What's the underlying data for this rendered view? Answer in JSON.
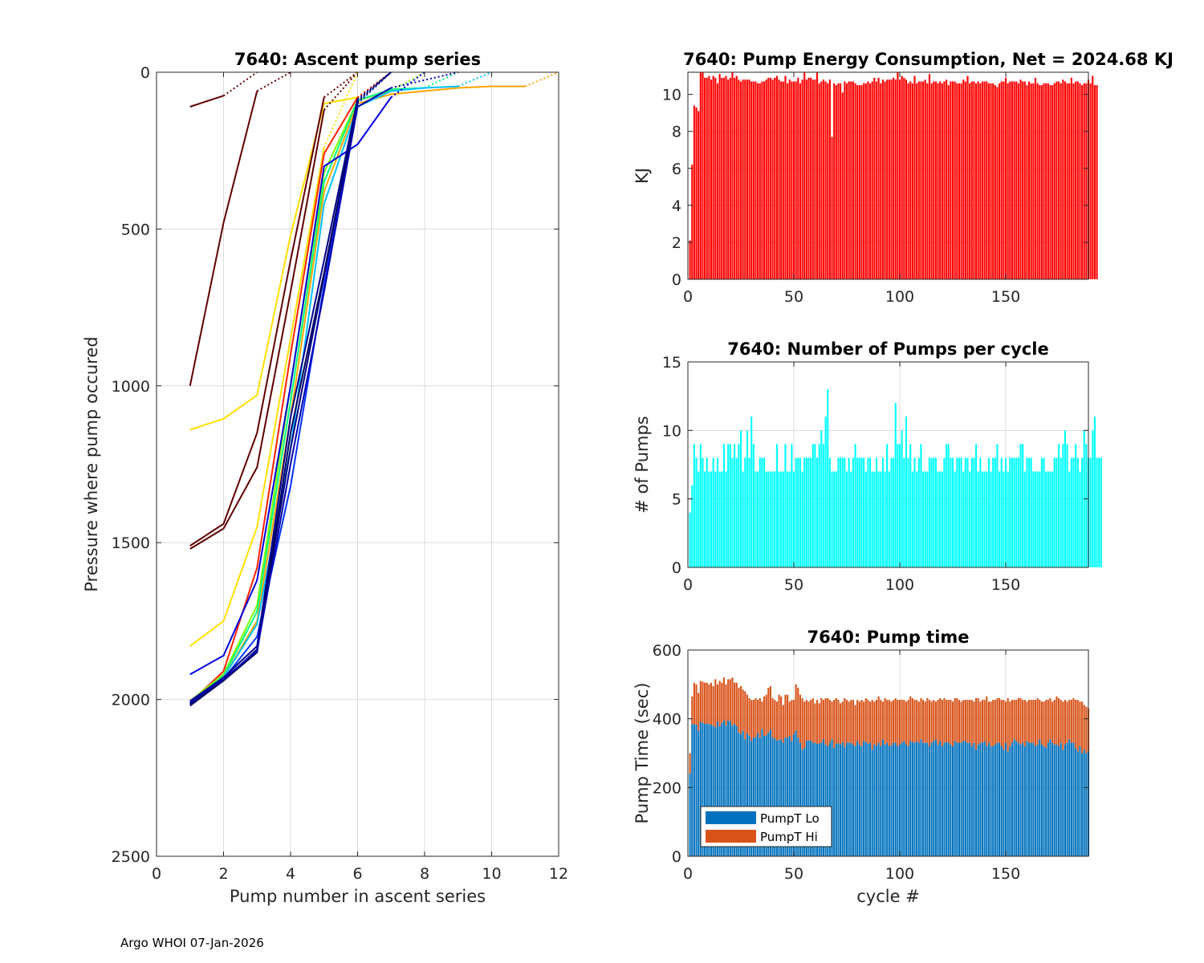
{
  "footer": "Argo WHOI 07-Jan-2026",
  "chart_data": [
    {
      "id": "ascent",
      "type": "line",
      "title": "7640: Ascent pump series",
      "xlabel": "Pump number in ascent series",
      "ylabel": "Pressure where pump occured",
      "xlim": [
        0,
        12
      ],
      "ylim": [
        0,
        2500
      ],
      "y_reversed": true,
      "grid": true,
      "xticks": [
        0,
        2,
        4,
        6,
        8,
        10,
        12
      ],
      "yticks": [
        0,
        500,
        1000,
        1500,
        2000,
        2500
      ],
      "note": "final segment of each series (to surface) drawn dotted",
      "series": [
        {
          "color": "#600000",
          "x": [
            1,
            2,
            3
          ],
          "y": [
            110,
            75,
            0
          ]
        },
        {
          "color": "#600000",
          "x": [
            1,
            2,
            3,
            4
          ],
          "y": [
            1000,
            480,
            60,
            0
          ]
        },
        {
          "color": "#FFE000",
          "x": [
            1,
            2,
            3,
            4,
            5,
            6,
            7
          ],
          "y": [
            1140,
            1105,
            1030,
            520,
            100,
            80,
            0
          ]
        },
        {
          "color": "#600000",
          "x": [
            1,
            2,
            3,
            4,
            5,
            6
          ],
          "y": [
            1510,
            1440,
            1150,
            600,
            80,
            0
          ]
        },
        {
          "color": "#600000",
          "x": [
            1,
            2,
            3,
            4,
            5,
            6
          ],
          "y": [
            1520,
            1455,
            1260,
            700,
            120,
            0
          ]
        },
        {
          "color": "#FFE000",
          "x": [
            1,
            2,
            3,
            4,
            5,
            6
          ],
          "y": [
            1830,
            1750,
            1450,
            850,
            240,
            0
          ]
        },
        {
          "color": "#FF2000",
          "x": [
            1,
            2,
            3,
            4,
            5,
            6,
            7
          ],
          "y": [
            2010,
            1910,
            1580,
            900,
            260,
            80,
            0
          ]
        },
        {
          "color": "#80FF00",
          "x": [
            1,
            2,
            3,
            4,
            5,
            6,
            7,
            8
          ],
          "y": [
            2005,
            1920,
            1700,
            1000,
            320,
            90,
            60,
            0
          ]
        },
        {
          "color": "#00FF80",
          "x": [
            1,
            2,
            3,
            4,
            5,
            6,
            7,
            8,
            9
          ],
          "y": [
            2010,
            1925,
            1720,
            1050,
            350,
            90,
            55,
            50,
            0
          ]
        },
        {
          "color": "#FFA500",
          "x": [
            1,
            2,
            3,
            4,
            5,
            6,
            7,
            8,
            9,
            10,
            11,
            12
          ],
          "y": [
            2010,
            1930,
            1750,
            1100,
            380,
            100,
            70,
            60,
            50,
            45,
            45,
            0
          ]
        },
        {
          "color": "#00C0FF",
          "x": [
            1,
            2,
            3,
            4,
            5,
            6,
            7,
            8,
            9,
            10
          ],
          "y": [
            2015,
            1930,
            1760,
            1200,
            420,
            110,
            60,
            50,
            45,
            0
          ]
        },
        {
          "color": "#0000E0",
          "x": [
            1,
            2,
            3,
            4,
            5,
            6,
            7,
            8
          ],
          "y": [
            1920,
            1860,
            1620,
            1000,
            300,
            230,
            80,
            0
          ]
        },
        {
          "color": "#0030FF",
          "x": [
            1,
            2,
            3,
            4,
            5,
            6,
            7
          ],
          "y": [
            2010,
            1935,
            1800,
            1320,
            680,
            100,
            0
          ]
        },
        {
          "color": "#000080",
          "x": [
            1,
            2,
            3,
            4,
            5,
            6,
            7
          ],
          "y": [
            2015,
            1940,
            1840,
            1200,
            650,
            90,
            0
          ]
        },
        {
          "color": "#000060",
          "x": [
            1,
            2,
            3,
            4,
            5,
            6,
            7
          ],
          "y": [
            2020,
            1940,
            1850,
            1150,
            640,
            95,
            0
          ]
        },
        {
          "color": "#00008A",
          "x": [
            1,
            2,
            3,
            4,
            5,
            6,
            7
          ],
          "y": [
            2005,
            1930,
            1830,
            1100,
            600,
            85,
            0
          ]
        },
        {
          "color": "#0000B0",
          "x": [
            1,
            2,
            3,
            4,
            5,
            6,
            7,
            9
          ],
          "y": [
            2010,
            1935,
            1845,
            1250,
            700,
            110,
            50,
            0
          ]
        }
      ]
    },
    {
      "id": "energy",
      "type": "bar",
      "title": "7640: Pump Energy Consumption,  Net = 2024.68 KJ",
      "xlabel": "",
      "ylabel": "KJ",
      "xlim": [
        0,
        189
      ],
      "ylim": [
        0,
        11.2
      ],
      "grid": true,
      "xticks": [
        0,
        50,
        100,
        150
      ],
      "yticks": [
        0,
        2,
        4,
        6,
        8,
        10
      ],
      "color": "#FF0000",
      "values": [
        2.1,
        6.2,
        9.4,
        9.3,
        9.1,
        11.2,
        11.2,
        10.9,
        10.9,
        11.0,
        10.8,
        11.0,
        10.9,
        10.6,
        11.1,
        10.9,
        10.9,
        11.0,
        10.8,
        10.9,
        11.2,
        10.9,
        11.0,
        10.8,
        10.7,
        10.8,
        10.8,
        10.8,
        10.8,
        10.7,
        10.7,
        10.7,
        10.6,
        10.6,
        10.7,
        10.7,
        10.8,
        10.9,
        10.9,
        10.8,
        10.9,
        11.0,
        10.8,
        10.7,
        10.7,
        11.0,
        10.6,
        10.8,
        10.7,
        10.7,
        10.7,
        10.9,
        10.6,
        10.8,
        11.2,
        10.8,
        10.9,
        10.9,
        10.8,
        10.8,
        11.2,
        10.6,
        10.7,
        10.8,
        10.7,
        10.6,
        10.8,
        7.7,
        10.6,
        10.5,
        10.6,
        10.6,
        10.1,
        10.7,
        10.6,
        10.7,
        10.7,
        10.7,
        10.6,
        10.5,
        10.5,
        10.5,
        10.6,
        10.6,
        10.7,
        10.6,
        10.7,
        10.9,
        10.7,
        10.9,
        10.6,
        10.8,
        10.7,
        10.8,
        10.8,
        10.8,
        10.9,
        10.8,
        11.2,
        10.8,
        11.0,
        10.9,
        10.8,
        10.6,
        10.7,
        10.6,
        11.0,
        10.6,
        10.7,
        10.7,
        10.7,
        10.8,
        10.6,
        11.1,
        10.6,
        10.7,
        10.7,
        10.6,
        10.7,
        10.6,
        10.7,
        10.8,
        10.5,
        10.7,
        10.7,
        10.7,
        10.6,
        10.6,
        10.6,
        10.8,
        10.7,
        11.0,
        10.6,
        10.7,
        10.7,
        10.6,
        10.7,
        10.6,
        10.7,
        10.7,
        10.7,
        10.6,
        10.6,
        10.6,
        10.5,
        10.4,
        10.6,
        10.7,
        10.7,
        10.9,
        10.6,
        10.7,
        10.7,
        10.7,
        10.7,
        10.6,
        10.8,
        10.7,
        10.7,
        10.5,
        10.7,
        10.6,
        10.6,
        10.9,
        10.6,
        10.5,
        10.5,
        10.6,
        10.6,
        10.6,
        10.5,
        10.5,
        10.6,
        10.7,
        10.7,
        10.6,
        10.8,
        10.7,
        10.6,
        10.6,
        10.9,
        10.6,
        10.7,
        10.7,
        10.6,
        10.5,
        10.6,
        10.6,
        10.8,
        10.6,
        11.0,
        10.5,
        10.5
      ]
    },
    {
      "id": "pumps",
      "type": "bar",
      "title": "7640: Number of Pumps per cycle",
      "xlabel": "",
      "ylabel": "# of Pumps",
      "xlim": [
        0,
        189
      ],
      "ylim": [
        0,
        15
      ],
      "grid": true,
      "xticks": [
        0,
        50,
        100,
        150
      ],
      "yticks": [
        0,
        5,
        10,
        15
      ],
      "color": "#00FFFF",
      "values": [
        4,
        6,
        9,
        8,
        7,
        9,
        8,
        7,
        8,
        7,
        7,
        8,
        7,
        8,
        7,
        7,
        9,
        7,
        9,
        9,
        8,
        9,
        8,
        9,
        10,
        7,
        8,
        10,
        8,
        11,
        9,
        7,
        7,
        8,
        8,
        8,
        7,
        7,
        7,
        7,
        7,
        9,
        7,
        7,
        7,
        9,
        7,
        7,
        9,
        7,
        8,
        8,
        8,
        7,
        8,
        8,
        8,
        8,
        9,
        9,
        8,
        9,
        10,
        9,
        11,
        13,
        8,
        7,
        7,
        7,
        8,
        8,
        8,
        8,
        7,
        8,
        7,
        8,
        9,
        8,
        8,
        8,
        8,
        7,
        8,
        8,
        7,
        7,
        8,
        7,
        7,
        8,
        7,
        9,
        7,
        8,
        8,
        12,
        9,
        9,
        10,
        8,
        11,
        8,
        9,
        7,
        8,
        7,
        8,
        9,
        7,
        7,
        7,
        8,
        8,
        8,
        8,
        7,
        7,
        7,
        8,
        9,
        9,
        8,
        8,
        7,
        8,
        8,
        8,
        7,
        8,
        8,
        7,
        8,
        8,
        9,
        7,
        8,
        7,
        7,
        7,
        8,
        7,
        8,
        8,
        9,
        7,
        8,
        7,
        8,
        7,
        8,
        8,
        8,
        8,
        8,
        9,
        9,
        7,
        8,
        8,
        8,
        7,
        7,
        7,
        7,
        8,
        8,
        7,
        7,
        7,
        7,
        8,
        8,
        9,
        8,
        9,
        10,
        9,
        7,
        8,
        8,
        9,
        8,
        7,
        8,
        10,
        9,
        8,
        8,
        10,
        11,
        8,
        8,
        8
      ]
    },
    {
      "id": "pumptime",
      "type": "bar",
      "stacked": true,
      "title": "7640: Pump time",
      "xlabel": "cycle #",
      "ylabel": "Pump Time (sec)",
      "xlim": [
        0,
        189
      ],
      "ylim": [
        0,
        600
      ],
      "grid": true,
      "xticks": [
        0,
        50,
        100,
        150
      ],
      "yticks": [
        0,
        200,
        400,
        600
      ],
      "legend": {
        "placement": "bottom-left",
        "entries": [
          "PumpT Lo",
          "PumpT Hi"
        ]
      },
      "series": [
        {
          "name": "PumpT Lo",
          "color": "#0072BD",
          "values": [
            240,
            385,
            383,
            383,
            365,
            390,
            388,
            385,
            385,
            385,
            382,
            380,
            375,
            392,
            378,
            387,
            395,
            380,
            395,
            393,
            380,
            385,
            378,
            360,
            355,
            365,
            340,
            357,
            350,
            335,
            345,
            347,
            358,
            345,
            370,
            350,
            352,
            360,
            368,
            345,
            342,
            337,
            338,
            340,
            330,
            345,
            345,
            350,
            335,
            355,
            365,
            345,
            330,
            310,
            315,
            335,
            337,
            337,
            330,
            330,
            327,
            328,
            330,
            340,
            325,
            320,
            330,
            340,
            315,
            328,
            328,
            325,
            332,
            318,
            330,
            330,
            330,
            325,
            320,
            335,
            325,
            320,
            335,
            332,
            327,
            330,
            310,
            325,
            322,
            330,
            320,
            340,
            325,
            330,
            320,
            322,
            330,
            330,
            320,
            325,
            330,
            335,
            325,
            320,
            335,
            332,
            330,
            335,
            330,
            340,
            330,
            330,
            330,
            320,
            330,
            335,
            340,
            325,
            335,
            320,
            330,
            332,
            330,
            325,
            320,
            335,
            330,
            330,
            330,
            335,
            335,
            330,
            330,
            320,
            330,
            310,
            325,
            330,
            330,
            335,
            320,
            330,
            320,
            320,
            325,
            330,
            330,
            320,
            310,
            330,
            305,
            320,
            330,
            340,
            335,
            330,
            325,
            330,
            320,
            335,
            330,
            330,
            330,
            320,
            325,
            340,
            325,
            320,
            315,
            330,
            340,
            330,
            325,
            325,
            320,
            330,
            310,
            325,
            330,
            340,
            330,
            330,
            315,
            305,
            320,
            300,
            310,
            300,
            305
          ]
        },
        {
          "name": "PumpT Hi",
          "color": "#D95319",
          "totals": [
            300,
            465,
            505,
            500,
            475,
            510,
            508,
            505,
            505,
            500,
            505,
            495,
            515,
            500,
            510,
            505,
            520,
            500,
            515,
            515,
            520,
            505,
            505,
            490,
            495,
            485,
            480,
            470,
            460,
            455,
            455,
            460,
            455,
            460,
            450,
            465,
            470,
            490,
            495,
            460,
            455,
            450,
            470,
            465,
            440,
            470,
            470,
            450,
            455,
            455,
            500,
            490,
            470,
            460,
            450,
            455,
            450,
            455,
            460,
            445,
            455,
            445,
            460,
            455,
            460,
            460,
            455,
            450,
            455,
            460,
            455,
            445,
            450,
            460,
            455,
            450,
            455,
            455,
            440,
            455,
            450,
            455,
            450,
            460,
            455,
            450,
            455,
            450,
            455,
            465,
            455,
            450,
            460,
            455,
            455,
            450,
            455,
            460,
            455,
            455,
            455,
            455,
            450,
            455,
            465,
            460,
            455,
            455,
            450,
            460,
            455,
            450,
            460,
            455,
            450,
            455,
            450,
            455,
            460,
            455,
            460,
            455,
            455,
            455,
            450,
            460,
            460,
            455,
            450,
            455,
            455,
            455,
            455,
            455,
            450,
            460,
            460,
            450,
            455,
            455,
            465,
            450,
            450,
            455,
            455,
            460,
            460,
            455,
            455,
            450,
            460,
            450,
            455,
            455,
            455,
            460,
            460,
            455,
            455,
            450,
            455,
            455,
            455,
            455,
            460,
            455,
            450,
            450,
            455,
            455,
            460,
            450,
            455,
            465,
            460,
            455,
            450,
            455,
            450,
            455,
            455,
            460,
            455,
            455,
            450,
            450,
            440,
            435,
            430,
            435
          ]
        }
      ]
    }
  ]
}
